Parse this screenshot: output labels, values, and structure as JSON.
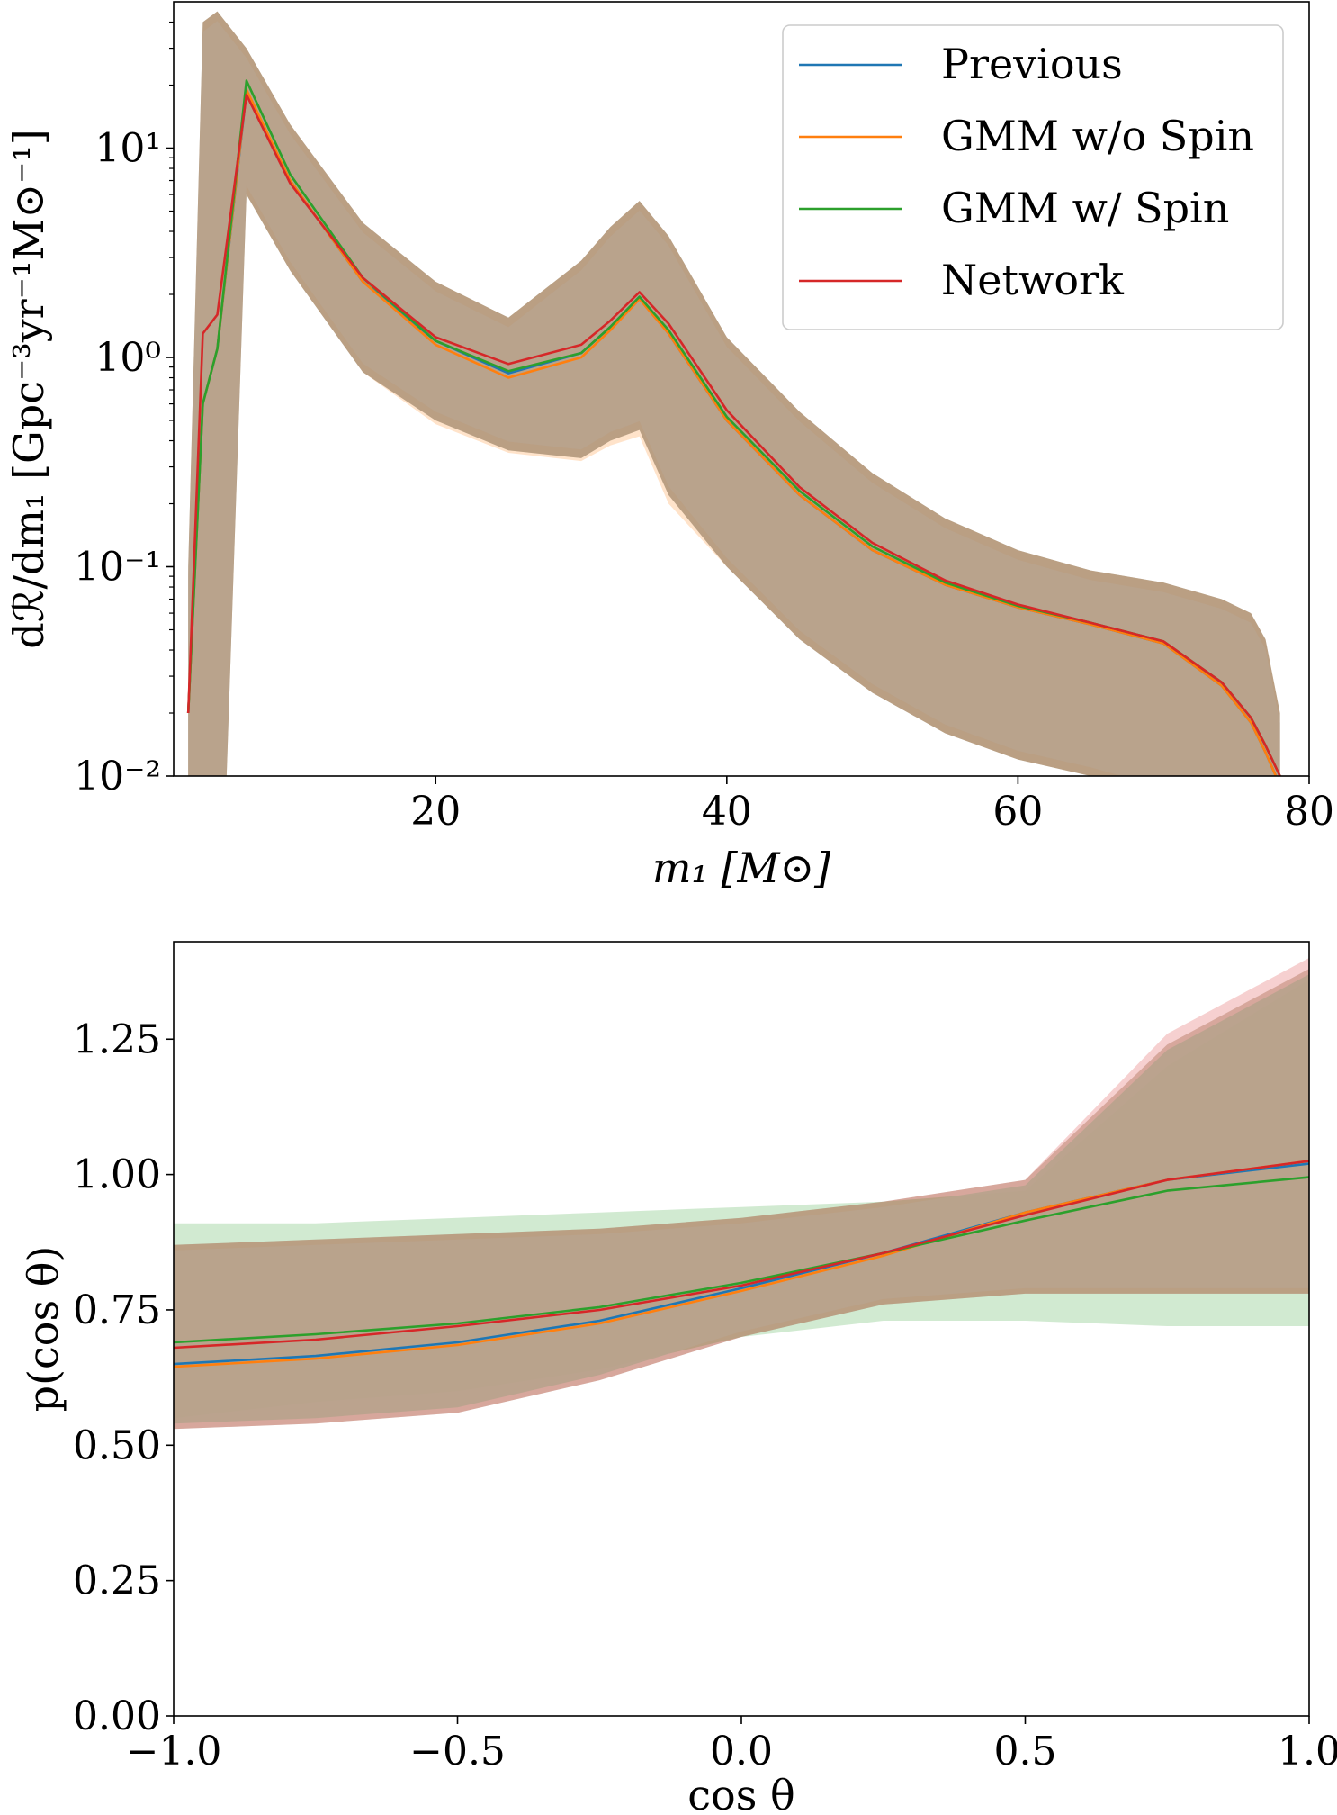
{
  "chart_data": [
    {
      "type": "line",
      "xlabel": "m₁ [M⊙]",
      "ylabel": "dℛ/dm₁ [Gpc⁻³yr⁻¹M⊙⁻¹]",
      "y_scale": "log",
      "xlim": [
        2,
        80
      ],
      "ylim": [
        0.01,
        50
      ],
      "x_ticks": [
        20,
        40,
        60,
        80
      ],
      "x_tick_labels": [
        "20",
        "40",
        "60",
        "80"
      ],
      "y_ticks": [
        0.01,
        0.1,
        1,
        10
      ],
      "y_tick_labels": [
        "10⁻²",
        "10⁻¹",
        "10⁰",
        "10¹"
      ],
      "legend": {
        "position": "top-right",
        "entries": [
          "Previous",
          "GMM w/o Spin",
          "GMM w/ Spin",
          "Network"
        ]
      },
      "grid": false,
      "x": [
        3.0,
        4,
        5,
        7,
        10,
        15,
        20,
        25,
        30,
        32,
        34,
        36,
        40,
        45,
        50,
        55,
        60,
        65,
        70,
        74,
        76,
        77,
        78
      ],
      "series": [
        {
          "name": "Previous",
          "color": "#1f77b4",
          "values": [
            0.02,
            0.6,
            1.1,
            18.5,
            7.0,
            2.3,
            1.2,
            0.84,
            1.05,
            1.4,
            1.95,
            1.3,
            0.5,
            0.22,
            0.12,
            0.082,
            0.064,
            0.053,
            0.043,
            0.027,
            0.018,
            0.013,
            0.009
          ],
          "lower": [
            0.0005,
            0.0005,
            0.0005,
            6.0,
            2.6,
            0.85,
            0.5,
            0.36,
            0.33,
            0.4,
            0.45,
            0.22,
            0.1,
            0.045,
            0.025,
            0.016,
            0.012,
            0.01,
            0.008,
            0.005,
            0.003,
            0.002,
            0.001
          ],
          "upper": [
            0.1,
            40,
            45,
            30,
            13,
            4.4,
            2.3,
            1.55,
            2.9,
            4.2,
            5.6,
            3.8,
            1.25,
            0.55,
            0.28,
            0.17,
            0.12,
            0.096,
            0.084,
            0.07,
            0.06,
            0.045,
            0.02
          ]
        },
        {
          "name": "GMM w/o Spin",
          "color": "#ff7f0e",
          "values": [
            0.02,
            0.6,
            1.1,
            19.0,
            7.0,
            2.3,
            1.15,
            0.8,
            1.0,
            1.35,
            1.9,
            1.3,
            0.5,
            0.22,
            0.12,
            0.082,
            0.064,
            0.053,
            0.043,
            0.027,
            0.018,
            0.013,
            0.009
          ],
          "lower": [
            0.0005,
            0.0005,
            0.0005,
            6.0,
            2.6,
            0.85,
            0.48,
            0.35,
            0.32,
            0.38,
            0.42,
            0.2,
            0.1,
            0.045,
            0.025,
            0.016,
            0.012,
            0.01,
            0.008,
            0.005,
            0.003,
            0.002,
            0.001
          ],
          "upper": [
            0.1,
            40,
            45,
            30,
            13,
            4.4,
            2.3,
            1.55,
            2.9,
            4.2,
            5.6,
            3.8,
            1.25,
            0.55,
            0.28,
            0.17,
            0.12,
            0.096,
            0.084,
            0.07,
            0.06,
            0.045,
            0.02
          ]
        },
        {
          "name": "GMM w/ Spin",
          "color": "#2ca02c",
          "values": [
            0.02,
            0.6,
            1.1,
            21.0,
            7.5,
            2.4,
            1.2,
            0.86,
            1.05,
            1.4,
            1.95,
            1.35,
            0.52,
            0.23,
            0.125,
            0.084,
            0.065,
            0.054,
            0.044,
            0.028,
            0.019,
            0.014,
            0.01
          ],
          "lower": [
            0.0005,
            0.0005,
            0.0005,
            6.0,
            2.6,
            0.85,
            0.5,
            0.36,
            0.33,
            0.4,
            0.45,
            0.22,
            0.1,
            0.045,
            0.025,
            0.016,
            0.012,
            0.01,
            0.008,
            0.005,
            0.003,
            0.002,
            0.001
          ],
          "upper": [
            0.1,
            40,
            45,
            30,
            13,
            4.4,
            2.3,
            1.55,
            2.9,
            4.2,
            5.6,
            3.8,
            1.25,
            0.55,
            0.28,
            0.17,
            0.12,
            0.096,
            0.084,
            0.07,
            0.06,
            0.045,
            0.02
          ]
        },
        {
          "name": "Network",
          "color": "#d62728",
          "values": [
            0.02,
            1.3,
            1.6,
            18.0,
            6.8,
            2.4,
            1.25,
            0.93,
            1.15,
            1.5,
            2.05,
            1.45,
            0.56,
            0.24,
            0.13,
            0.086,
            0.066,
            0.054,
            0.044,
            0.028,
            0.019,
            0.014,
            0.01
          ],
          "lower": [
            0.0005,
            0.0005,
            0.0005,
            6.0,
            2.6,
            0.85,
            0.5,
            0.36,
            0.33,
            0.4,
            0.45,
            0.22,
            0.1,
            0.045,
            0.025,
            0.016,
            0.012,
            0.01,
            0.008,
            0.005,
            0.003,
            0.002,
            0.001
          ],
          "upper": [
            0.1,
            40,
            45,
            30,
            13,
            4.4,
            2.3,
            1.55,
            2.9,
            4.2,
            5.6,
            3.8,
            1.25,
            0.55,
            0.28,
            0.17,
            0.12,
            0.096,
            0.084,
            0.07,
            0.06,
            0.045,
            0.02
          ]
        }
      ]
    },
    {
      "type": "line",
      "xlabel": "cos θ",
      "ylabel": "p(cos θ)",
      "xlim": [
        -1.0,
        1.0
      ],
      "ylim": [
        0.0,
        1.43
      ],
      "x_ticks": [
        -1.0,
        -0.5,
        0.0,
        0.5,
        1.0
      ],
      "x_tick_labels": [
        "−1.0",
        "−0.5",
        "0.0",
        "0.5",
        "1.0"
      ],
      "y_ticks": [
        0.0,
        0.25,
        0.5,
        0.75,
        1.0,
        1.25
      ],
      "y_tick_labels": [
        "0.00",
        "0.25",
        "0.50",
        "0.75",
        "1.00",
        "1.25"
      ],
      "grid": false,
      "x": [
        -1.0,
        -0.75,
        -0.5,
        -0.25,
        0.0,
        0.25,
        0.5,
        0.75,
        1.0
      ],
      "series": [
        {
          "name": "Previous",
          "color": "#1f77b4",
          "values": [
            0.65,
            0.665,
            0.69,
            0.73,
            0.79,
            0.855,
            0.93,
            0.99,
            1.02
          ],
          "lower": [
            0.53,
            0.54,
            0.56,
            0.62,
            0.7,
            0.76,
            0.78,
            0.78,
            0.78
          ],
          "upper": [
            0.87,
            0.88,
            0.89,
            0.9,
            0.92,
            0.95,
            0.99,
            1.24,
            1.38
          ]
        },
        {
          "name": "GMM w/o Spin",
          "color": "#ff7f0e",
          "values": [
            0.645,
            0.66,
            0.685,
            0.725,
            0.785,
            0.85,
            0.93,
            0.99,
            1.025
          ],
          "lower": [
            0.53,
            0.54,
            0.56,
            0.62,
            0.7,
            0.76,
            0.78,
            0.78,
            0.78
          ],
          "upper": [
            0.87,
            0.88,
            0.89,
            0.9,
            0.92,
            0.95,
            0.99,
            1.24,
            1.38
          ]
        },
        {
          "name": "GMM w/ Spin",
          "color": "#2ca02c",
          "values": [
            0.69,
            0.705,
            0.725,
            0.755,
            0.8,
            0.855,
            0.915,
            0.97,
            0.995
          ],
          "lower": [
            0.55,
            0.58,
            0.6,
            0.64,
            0.7,
            0.73,
            0.73,
            0.72,
            0.72
          ],
          "upper": [
            0.91,
            0.91,
            0.92,
            0.93,
            0.94,
            0.95,
            0.97,
            1.2,
            1.36
          ]
        },
        {
          "name": "Network",
          "color": "#d62728",
          "values": [
            0.68,
            0.695,
            0.72,
            0.75,
            0.795,
            0.855,
            0.925,
            0.99,
            1.025
          ],
          "lower": [
            0.53,
            0.54,
            0.56,
            0.62,
            0.7,
            0.76,
            0.78,
            0.78,
            0.78
          ],
          "upper": [
            0.87,
            0.88,
            0.89,
            0.9,
            0.92,
            0.95,
            0.99,
            1.26,
            1.4
          ]
        }
      ]
    }
  ]
}
